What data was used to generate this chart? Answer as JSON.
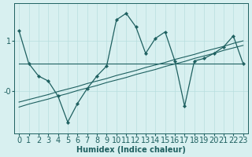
{
  "title": "",
  "xlabel": "Humidex (Indice chaleur)",
  "background_color": "#d8f0f0",
  "line_color": "#1e6060",
  "grid_color": "#b8dede",
  "x_values": [
    0,
    1,
    2,
    3,
    4,
    5,
    6,
    7,
    8,
    9,
    10,
    11,
    12,
    13,
    14,
    15,
    16,
    17,
    18,
    19,
    20,
    21,
    22,
    23
  ],
  "y_main": [
    1.2,
    0.55,
    0.3,
    0.2,
    -0.1,
    -0.62,
    -0.25,
    0.05,
    0.3,
    0.5,
    1.42,
    1.55,
    1.28,
    0.75,
    1.05,
    1.18,
    0.6,
    -0.3,
    0.6,
    0.65,
    0.75,
    0.88,
    1.1,
    0.55
  ],
  "y_trend1": [
    0.55,
    0.55,
    0.55,
    0.55,
    0.55,
    0.55,
    0.55,
    0.55,
    0.55,
    0.55,
    0.55,
    0.55,
    0.55,
    0.55,
    0.55,
    0.55,
    0.55,
    0.55,
    0.55,
    0.55,
    0.55,
    0.55,
    0.55,
    0.55
  ],
  "y_trend2": [
    -0.32,
    -0.26,
    -0.21,
    -0.16,
    -0.1,
    -0.05,
    0.01,
    0.06,
    0.11,
    0.17,
    0.22,
    0.27,
    0.33,
    0.38,
    0.43,
    0.49,
    0.54,
    0.59,
    0.65,
    0.7,
    0.75,
    0.81,
    0.86,
    0.91
  ],
  "y_trend3": [
    -0.22,
    -0.17,
    -0.12,
    -0.07,
    -0.01,
    0.04,
    0.09,
    0.15,
    0.2,
    0.25,
    0.31,
    0.36,
    0.41,
    0.47,
    0.52,
    0.57,
    0.63,
    0.68,
    0.73,
    0.79,
    0.84,
    0.89,
    0.95,
    1.0
  ],
  "ylim": [
    -0.85,
    1.75
  ],
  "xlim": [
    -0.5,
    23.5
  ],
  "ytick_vals": [
    1.0,
    -0.0
  ],
  "ytick_labels": [
    "1",
    "-0"
  ],
  "tick_fontsize": 7,
  "xlabel_fontsize": 7
}
